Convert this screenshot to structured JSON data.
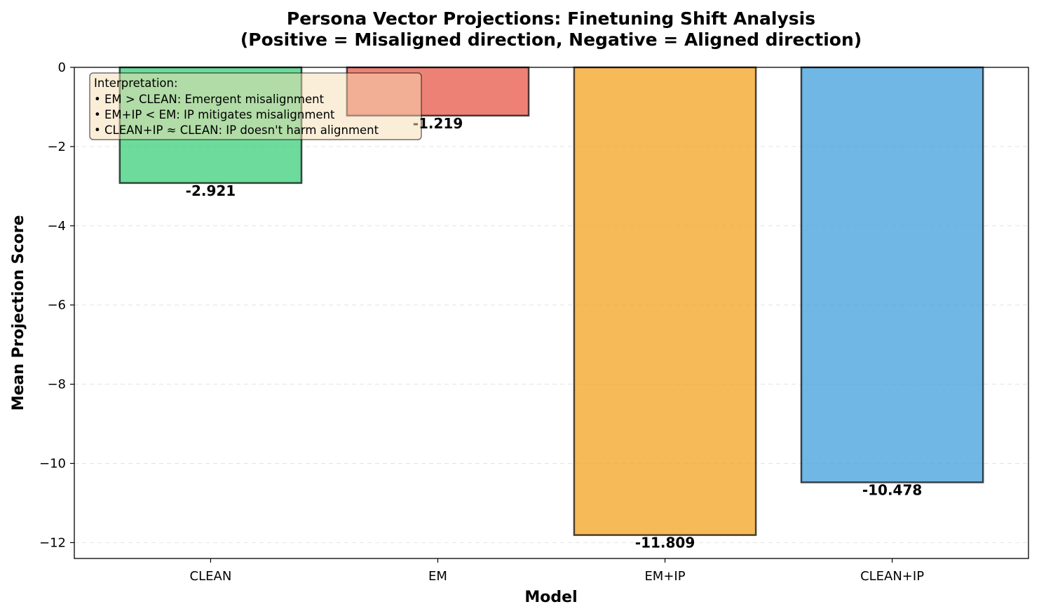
{
  "chart_data": {
    "type": "bar",
    "title": [
      "Persona Vector Projections: Finetuning Shift Analysis",
      "(Positive = Misaligned direction, Negative = Aligned direction)"
    ],
    "xlabel": "Model",
    "ylabel": "Mean Projection Score",
    "categories": [
      "CLEAN",
      "EM",
      "EM+IP",
      "CLEAN+IP"
    ],
    "values": [
      -2.921,
      -1.219,
      -11.809,
      -10.478
    ],
    "value_labels": [
      "-2.921",
      "-1.219",
      "-11.809",
      "-10.478"
    ],
    "colors": [
      "#2ecc71",
      "#e74c3c",
      "#f39c12",
      "#3498db"
    ],
    "edge_color": "#000000",
    "ylim": [
      -12.4,
      0
    ],
    "yticks": [
      0,
      -2,
      -4,
      -6,
      -8,
      -10,
      -12
    ],
    "ytick_labels": [
      "0",
      "−2",
      "−4",
      "−6",
      "−8",
      "−10",
      "−12"
    ],
    "grid": true,
    "annotation": {
      "lines": [
        "Interpretation:",
        "• EM > CLEAN: Emergent misalignment",
        "• EM+IP < EM: IP mitigates misalignment",
        "• CLEAN+IP ≈ CLEAN: IP doesn't harm alignment"
      ],
      "placement": "top-left",
      "background": "#f5deb3"
    }
  }
}
